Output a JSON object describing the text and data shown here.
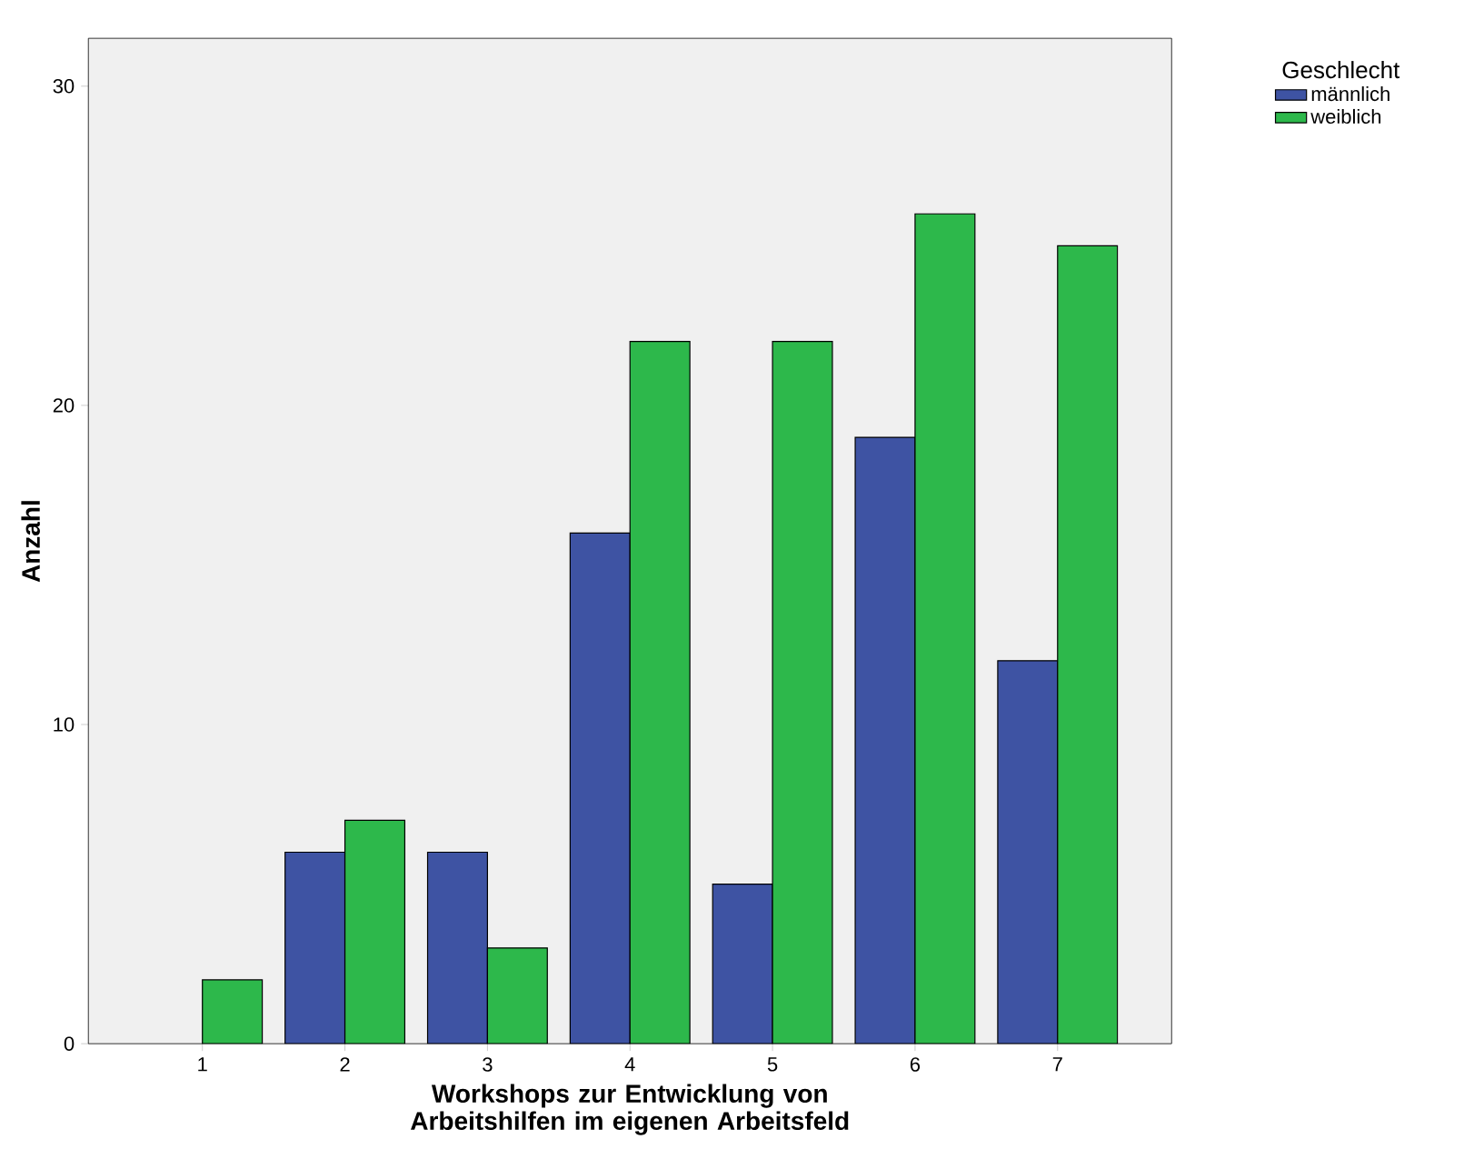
{
  "chart_data": {
    "type": "bar",
    "xlabel": "Workshops zur Entwicklung von Arbeitshilfen im eigenen Arbeitsfeld",
    "ylabel": "Anzahl",
    "legend_title": "Geschlecht",
    "categories": [
      "1",
      "2",
      "3",
      "4",
      "5",
      "6",
      "7"
    ],
    "series": [
      {
        "name": "männlich",
        "color": "#3e53a3",
        "values": [
          null,
          6,
          6,
          16,
          5,
          19,
          12
        ]
      },
      {
        "name": "weiblich",
        "color": "#2db84b",
        "values": [
          2,
          7,
          3,
          22,
          22,
          26,
          25
        ]
      }
    ],
    "ylim": [
      0,
      31.5
    ],
    "yticks": [
      0,
      10,
      20,
      30
    ],
    "grid": false,
    "legend": "top right"
  }
}
